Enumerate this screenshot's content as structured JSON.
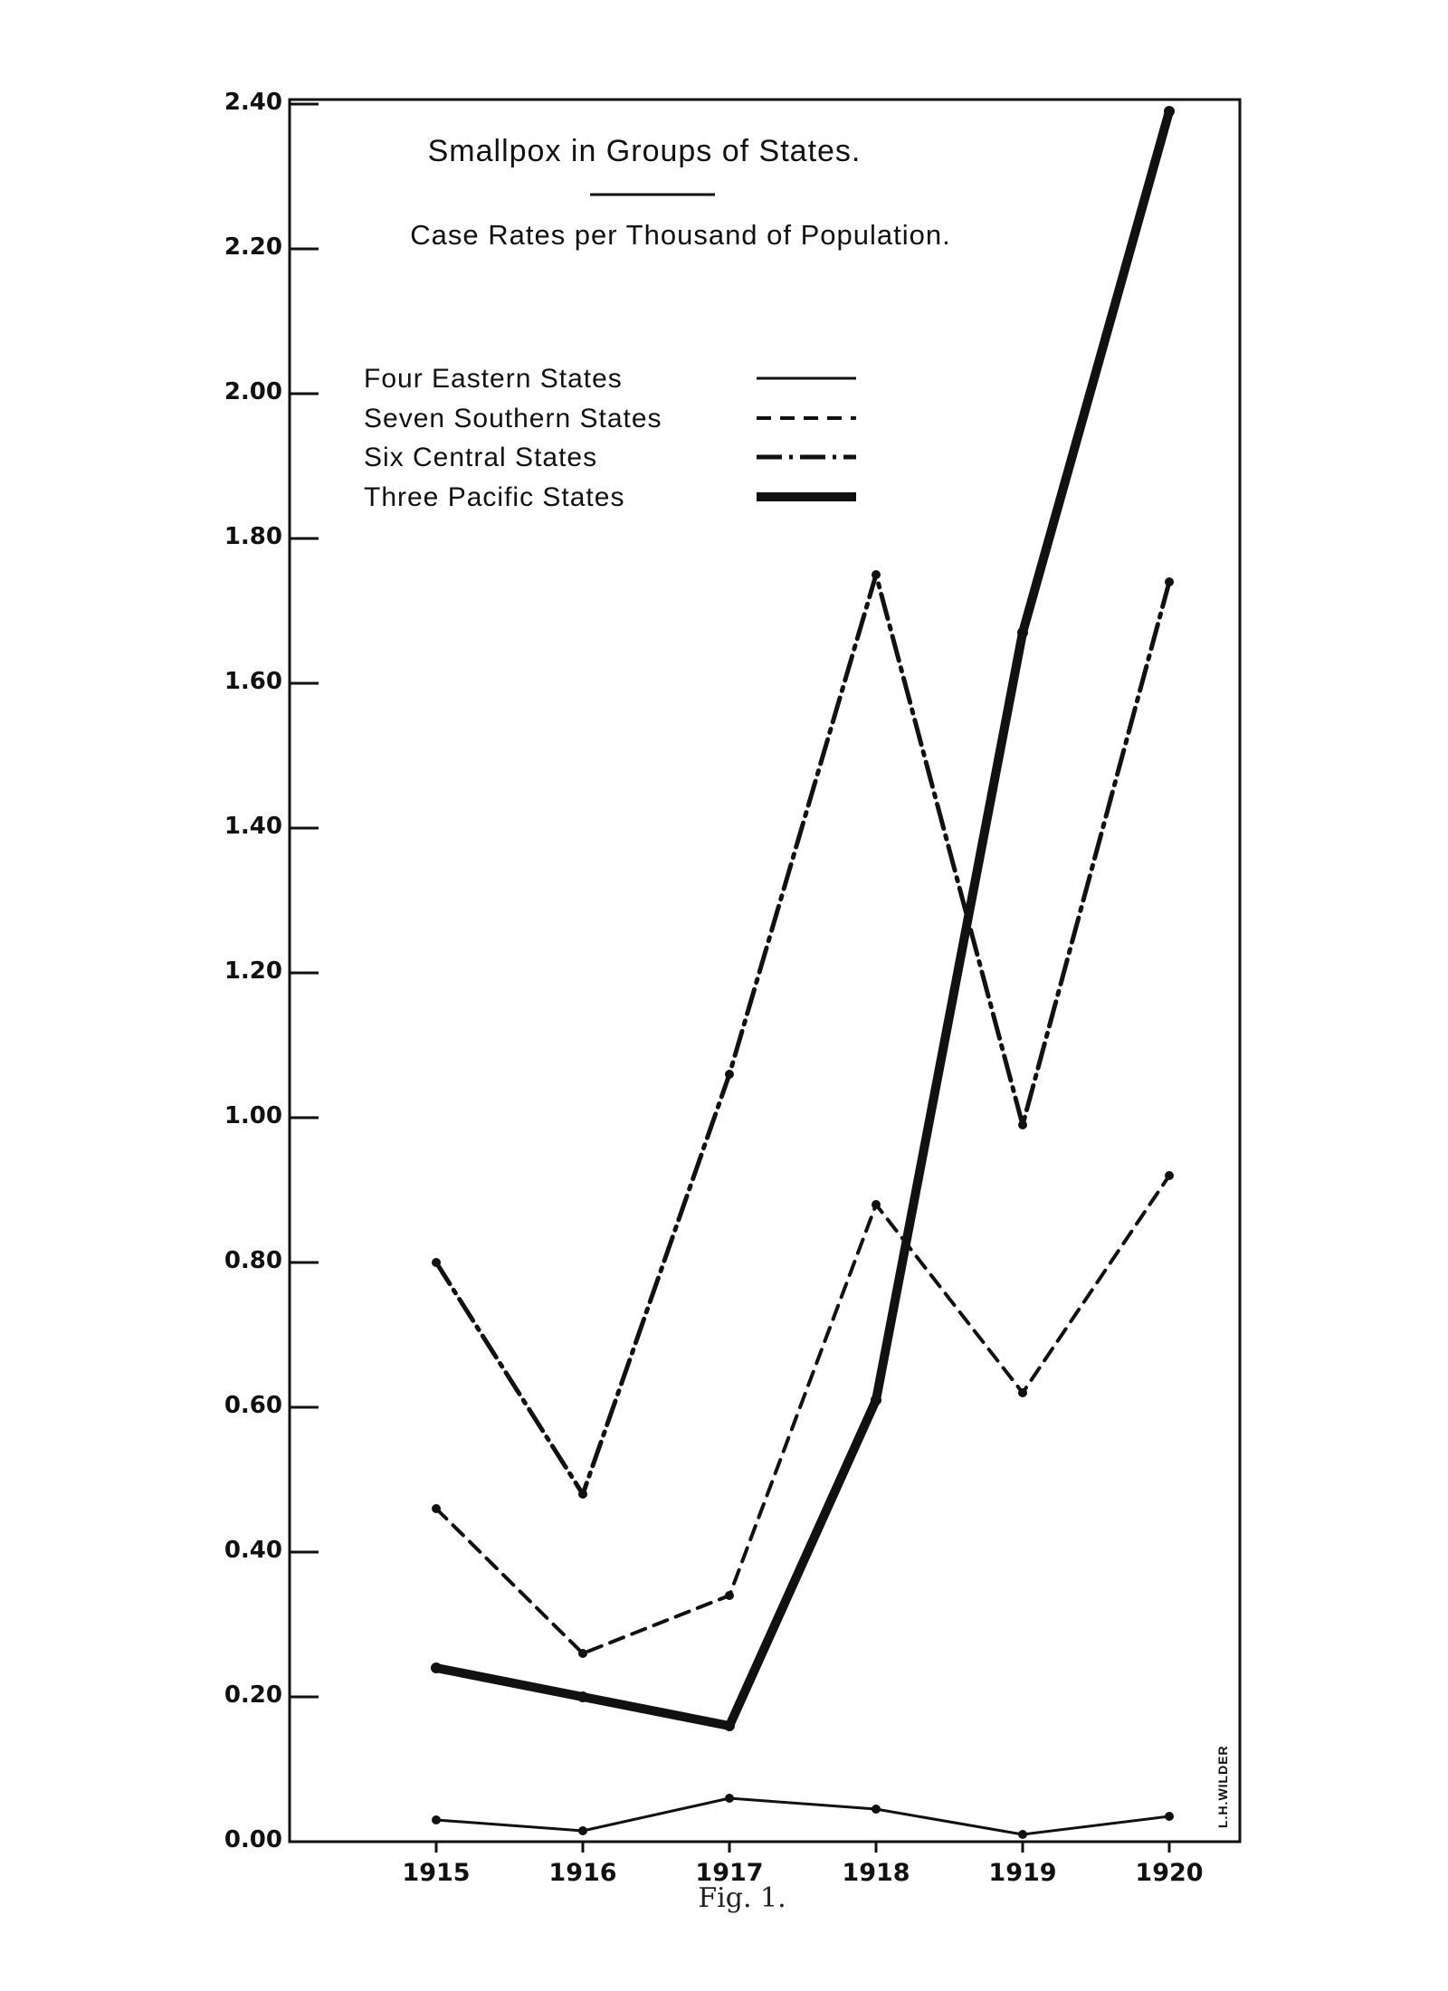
{
  "chart_data": {
    "type": "line",
    "title": "Smallpox in Groups of States.",
    "subtitle": "Case Rates per Thousand of Population.",
    "xlabel": "",
    "ylabel": "",
    "categories": [
      "1915",
      "1916",
      "1917",
      "1918",
      "1919",
      "1920"
    ],
    "y_ticks": [
      "0.00",
      "0.20",
      "0.40",
      "0.60",
      "0.80",
      "1.00",
      "1.20",
      "1.40",
      "1.60",
      "1.80",
      "2.00",
      "2.20",
      "2.40"
    ],
    "ylim": [
      0,
      2.4
    ],
    "grid": false,
    "legend_position": "top-left",
    "series": [
      {
        "name": "Four Eastern States",
        "style": "solid",
        "values": [
          0.03,
          0.015,
          0.06,
          0.045,
          0.01,
          0.035
        ]
      },
      {
        "name": "Seven Southern States",
        "style": "dashed",
        "values": [
          0.46,
          0.26,
          0.34,
          0.88,
          0.62,
          0.92
        ]
      },
      {
        "name": "Six Central States",
        "style": "dashdot",
        "values": [
          0.8,
          0.48,
          1.06,
          1.75,
          0.99,
          1.74
        ]
      },
      {
        "name": "Three Pacific States",
        "style": "heavy",
        "values": [
          0.24,
          0.2,
          0.16,
          0.61,
          1.67,
          2.39
        ]
      }
    ],
    "credit": "L.H.WILDER"
  },
  "caption": "Fig. 1."
}
